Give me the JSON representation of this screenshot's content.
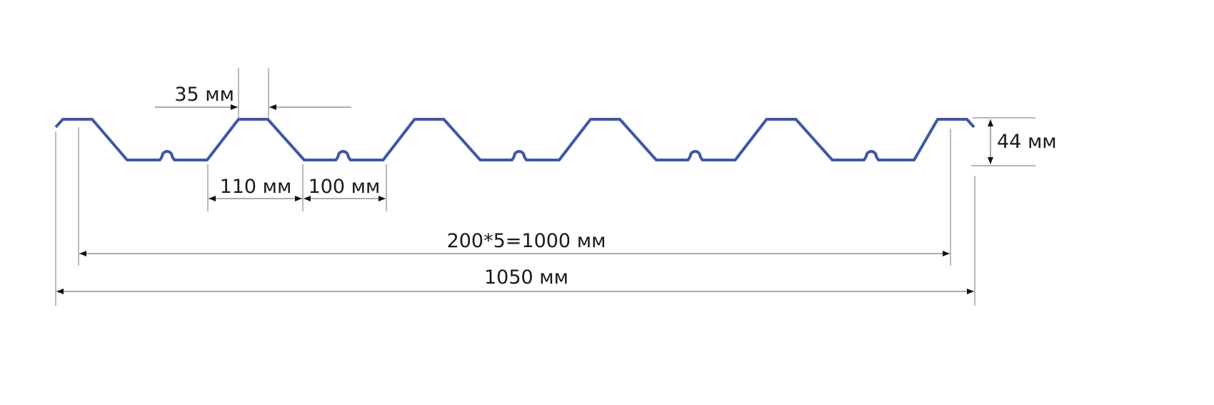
{
  "profile_color": "#3f56a8",
  "labels": {
    "top_width": "35 мм",
    "bottom_slope_width": "110 мм",
    "bottom_width": "100 мм",
    "height": "44 мм",
    "working_width": "200*5=1000 мм",
    "total_width": "1050 мм"
  }
}
